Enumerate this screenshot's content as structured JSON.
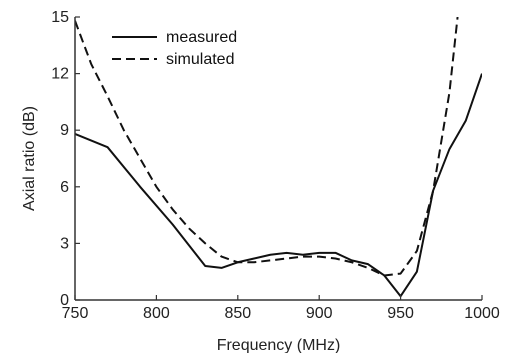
{
  "chart_data": {
    "type": "line",
    "title": "",
    "xlabel": "Frequency (MHz)",
    "ylabel": "Axial ratio (dB)",
    "xlim": [
      750,
      1000
    ],
    "ylim": [
      0,
      15
    ],
    "xticks": [
      750,
      800,
      850,
      900,
      950,
      1000
    ],
    "yticks": [
      0,
      3,
      6,
      9,
      12,
      15
    ],
    "xtick_labels": [
      "750",
      "800",
      "850",
      "900",
      "950",
      "1000"
    ],
    "ytick_labels": [
      "0",
      "3",
      "6",
      "9",
      "12",
      "15"
    ],
    "grid": false,
    "legend_position": "top-left",
    "series": [
      {
        "name": "measured",
        "style": "solid",
        "color": "#111111",
        "x": [
          750,
          770,
          790,
          810,
          830,
          840,
          850,
          860,
          870,
          880,
          890,
          900,
          910,
          920,
          930,
          940,
          950,
          960,
          970,
          980,
          990,
          1000
        ],
        "y": [
          8.8,
          8.1,
          6.0,
          4.0,
          1.8,
          1.7,
          2.0,
          2.2,
          2.4,
          2.5,
          2.4,
          2.5,
          2.5,
          2.1,
          1.9,
          1.3,
          0.2,
          1.5,
          5.8,
          8.0,
          9.5,
          12.0
        ]
      },
      {
        "name": "simulated",
        "style": "dashed",
        "color": "#111111",
        "x": [
          750,
          760,
          770,
          780,
          790,
          800,
          810,
          820,
          830,
          840,
          850,
          860,
          870,
          880,
          890,
          900,
          910,
          920,
          930,
          940,
          950,
          960,
          970,
          980,
          985
        ],
        "y": [
          14.8,
          12.5,
          10.8,
          9.0,
          7.5,
          6.0,
          4.8,
          3.8,
          3.0,
          2.3,
          2.0,
          2.0,
          2.1,
          2.2,
          2.3,
          2.3,
          2.2,
          2.0,
          1.7,
          1.3,
          1.4,
          2.6,
          5.8,
          11.0,
          15.0
        ]
      }
    ]
  }
}
